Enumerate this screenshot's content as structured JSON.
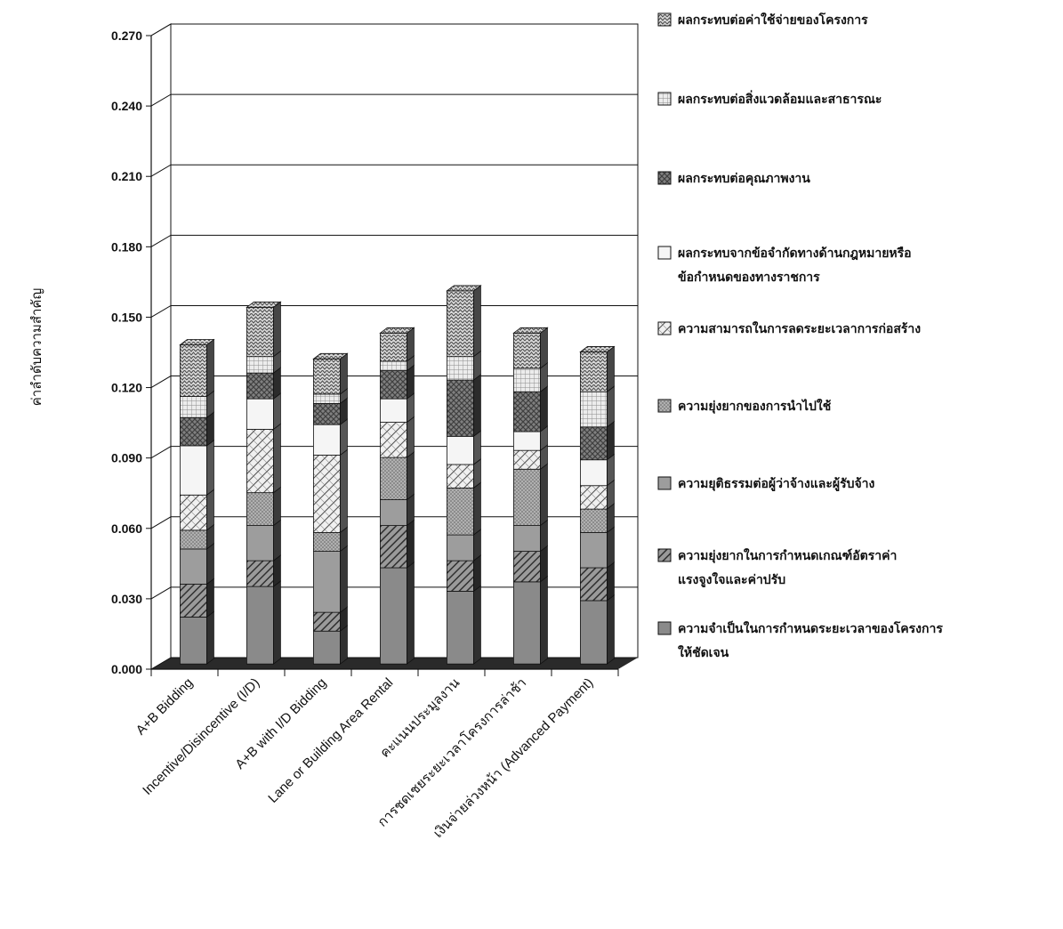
{
  "chart_data": {
    "type": "bar",
    "stacked": true,
    "three_d": true,
    "ylabel": "ค่าลำดับความสำคัญ",
    "xlabel": "",
    "ylim": [
      0,
      0.27
    ],
    "yticks": [
      "0.000",
      "0.030",
      "0.060",
      "0.090",
      "0.120",
      "0.150",
      "0.180",
      "0.210",
      "0.240",
      "0.270"
    ],
    "grid": true,
    "legend_position": "right",
    "categories": [
      "A+B Bidding",
      "Incentive/Disincentive (I/D)",
      "A+B with I/D Bidding",
      "Lane or Building Area Rental",
      "คะแนนประมูลงาน",
      "การชดเชยระยะเวลาโครงการล่าช้า",
      "เงินจ่ายล่วงหน้า (Advanced Payment)"
    ],
    "series": [
      {
        "name": "ความจำเป็นในการกำหนดระยะเวลาของโครงการให้ชัดเจน",
        "values": [
          0.02,
          0.033,
          0.014,
          0.041,
          0.031,
          0.035,
          0.027
        ],
        "color": "#8a8a8a",
        "pattern": "solid"
      },
      {
        "name": "ความยุ่งยากในการกำหนดเกณฑ์อัตราค่าแรงจูงใจและค่าปรับ",
        "values": [
          0.014,
          0.011,
          0.008,
          0.018,
          0.013,
          0.013,
          0.014
        ],
        "color": "#6e6e6e",
        "pattern": "diag-dense"
      },
      {
        "name": "ความยุติธรรมต่อผู้ว่าจ้างและผู้รับจ้าง",
        "values": [
          0.015,
          0.015,
          0.026,
          0.011,
          0.011,
          0.011,
          0.015
        ],
        "color": "#9d9d9d",
        "pattern": "solid"
      },
      {
        "name": "ความยุ่งยากของการนำไปใช้",
        "values": [
          0.008,
          0.014,
          0.008,
          0.018,
          0.02,
          0.024,
          0.01
        ],
        "color": "#a8a8a8",
        "pattern": "dots"
      },
      {
        "name": "ความสามารถในการลดระยะเวลาการก่อสร้าง",
        "values": [
          0.015,
          0.027,
          0.033,
          0.015,
          0.01,
          0.008,
          0.01
        ],
        "color": "#e6e6e6",
        "pattern": "diag-cross"
      },
      {
        "name": "ผลกระทบจากข้อจำกัดทางด้านกฎหมายหรือข้อกำหนดของทางราชการ",
        "values": [
          0.021,
          0.013,
          0.013,
          0.01,
          0.012,
          0.008,
          0.011
        ],
        "color": "#f5f5f5",
        "pattern": "solid"
      },
      {
        "name": "ผลกระทบต่อคุณภาพงาน",
        "values": [
          0.012,
          0.011,
          0.009,
          0.012,
          0.024,
          0.017,
          0.014
        ],
        "color": "#7a7a7a",
        "pattern": "crosshatch"
      },
      {
        "name": "ผลกระทบต่อสิ่งแวดล้อมและสาธารณะ",
        "values": [
          0.009,
          0.007,
          0.004,
          0.004,
          0.01,
          0.01,
          0.015
        ],
        "color": "#e0e0e0",
        "pattern": "grid"
      },
      {
        "name": "ผลกระทบต่อค่าใช้จ่ายของโครงการ",
        "values": [
          0.022,
          0.021,
          0.015,
          0.012,
          0.028,
          0.015,
          0.017
        ],
        "color": "#c8c8c8",
        "pattern": "zigzag"
      }
    ]
  }
}
